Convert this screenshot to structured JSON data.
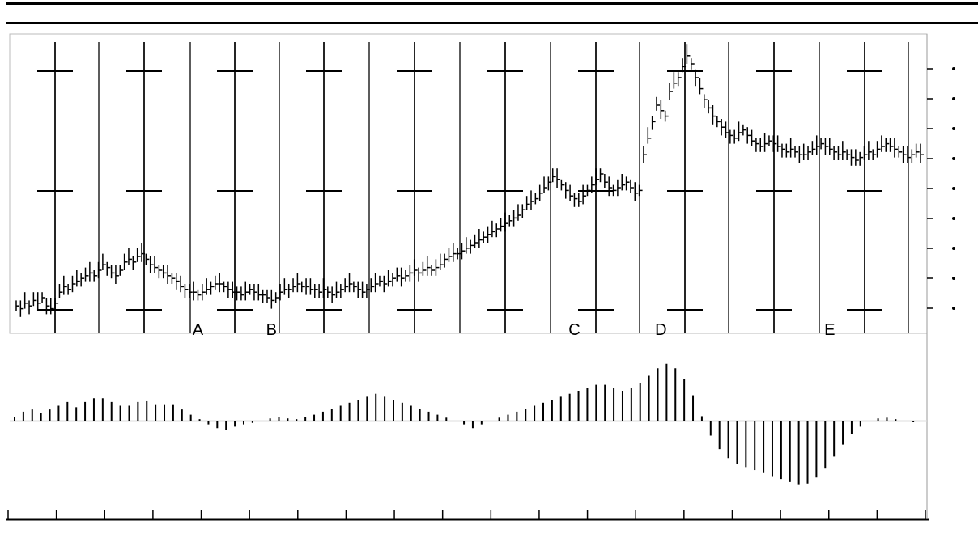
{
  "chart": {
    "title": "",
    "indicator_label": ""
  },
  "chart_data": {
    "type": "bar",
    "title": "",
    "price_panel": {
      "type": "ohlc",
      "ylim": [
        0,
        100
      ],
      "wave_labels": [
        "A",
        "B",
        "C",
        "D",
        "E"
      ],
      "wave_label_bars": [
        42,
        59,
        129,
        149,
        188
      ],
      "close": [
        7,
        6,
        8,
        7,
        9,
        8,
        10,
        7,
        6,
        8,
        12,
        14,
        13,
        15,
        16,
        17,
        18,
        19,
        18,
        20,
        22,
        21,
        19,
        18,
        20,
        23,
        24,
        23,
        25,
        26,
        24,
        22,
        21,
        20,
        19,
        18,
        17,
        16,
        14,
        13,
        12,
        12,
        11,
        12,
        13,
        14,
        15,
        15,
        14,
        13,
        12,
        12,
        11,
        12,
        13,
        12,
        11,
        11,
        10,
        9,
        10,
        12,
        13,
        13,
        14,
        15,
        14,
        14,
        13,
        13,
        12,
        13,
        12,
        11,
        12,
        13,
        14,
        15,
        14,
        13,
        12,
        13,
        14,
        15,
        16,
        15,
        16,
        17,
        18,
        17,
        18,
        19,
        20,
        19,
        20,
        21,
        20,
        21,
        22,
        24,
        25,
        26,
        26,
        27,
        28,
        29,
        30,
        31,
        32,
        33,
        34,
        35,
        36,
        37,
        38,
        39,
        40,
        42,
        44,
        45,
        46,
        48,
        50,
        52,
        54,
        53,
        51,
        49,
        47,
        46,
        45,
        47,
        49,
        51,
        53,
        55,
        52,
        50,
        49,
        50,
        51,
        52,
        50,
        48,
        49,
        62,
        68,
        74,
        80,
        78,
        76,
        85,
        88,
        90,
        94,
        98,
        95,
        90,
        86,
        82,
        79,
        76,
        74,
        72,
        70,
        69,
        68,
        70,
        71,
        69,
        67,
        66,
        65,
        66,
        67,
        66,
        65,
        64,
        63,
        64,
        63,
        62,
        62,
        63,
        64,
        65,
        66,
        65,
        64,
        63,
        62,
        63,
        62,
        61,
        60,
        61,
        62,
        63,
        62,
        64,
        65,
        66,
        65,
        64,
        63,
        62,
        61,
        62,
        63,
        62
      ]
    },
    "indicator_panel": {
      "type": "bar",
      "ylim": [
        -1,
        1
      ],
      "values": [
        0.05,
        0.1,
        0.12,
        0.14,
        0.15,
        0.12,
        0.1,
        0.12,
        0.15,
        0.18,
        0.2,
        0.22,
        0.25,
        0.2,
        0.18,
        0.22,
        0.25,
        0.28,
        0.3,
        0.32,
        0.3,
        0.28,
        0.25,
        0.22,
        0.2,
        0.18,
        0.2,
        0.22,
        0.25,
        0.28,
        0.26,
        0.24,
        0.22,
        0.2,
        0.22,
        0.24,
        0.22,
        0.2,
        0.15,
        0.1,
        0.08,
        0.05,
        0.02,
        0.0,
        -0.05,
        -0.08,
        -0.1,
        -0.12,
        -0.12,
        -0.1,
        -0.08,
        -0.06,
        -0.05,
        -0.04,
        -0.03,
        -0.02,
        0.0,
        0.02,
        0.03,
        0.04,
        0.05,
        0.04,
        0.03,
        0.02,
        0.02,
        0.03,
        0.05,
        0.06,
        0.08,
        0.1,
        0.12,
        0.14,
        0.16,
        0.18,
        0.2,
        0.22,
        0.24,
        0.26,
        0.28,
        0.3,
        0.32,
        0.34,
        0.36,
        0.34,
        0.32,
        0.3,
        0.28,
        0.26,
        0.24,
        0.22,
        0.2,
        0.18,
        0.16,
        0.14,
        0.12,
        0.1,
        0.08,
        0.06,
        0.04,
        0.02,
        0.0,
        -0.02,
        -0.05,
        -0.08,
        -0.1,
        -0.08,
        -0.05,
        -0.02,
        0.0,
        0.02,
        0.04,
        0.06,
        0.08,
        0.1,
        0.12,
        0.14,
        0.16,
        0.18,
        0.2,
        0.22,
        0.24,
        0.26,
        0.28,
        0.3,
        0.32,
        0.34,
        0.36,
        0.38,
        0.4,
        0.42,
        0.44,
        0.46,
        0.48,
        0.5,
        0.48,
        0.46,
        0.44,
        0.42,
        0.4,
        0.42,
        0.44,
        0.46,
        0.5,
        0.54,
        0.6,
        0.66,
        0.7,
        0.74,
        0.76,
        0.74,
        0.7,
        0.64,
        0.56,
        0.46,
        0.34,
        0.2,
        0.06,
        -0.08,
        -0.2,
        -0.3,
        -0.38,
        -0.44,
        -0.5,
        -0.55,
        -0.58,
        -0.6,
        -0.62,
        -0.64,
        -0.66,
        -0.68,
        -0.7,
        -0.72,
        -0.74,
        -0.76,
        -0.78,
        -0.8,
        -0.82,
        -0.84,
        -0.85,
        -0.86,
        -0.84,
        -0.8,
        -0.76,
        -0.7,
        -0.64,
        -0.56,
        -0.48,
        -0.4,
        -0.32,
        -0.24,
        -0.18,
        -0.12,
        -0.08,
        -0.04,
        0.0,
        0.02,
        0.03,
        0.04,
        0.04,
        0.03,
        0.02,
        0.01,
        0.0,
        -0.01,
        -0.02,
        -0.01,
        0.0
      ]
    },
    "x_tick_count": 20,
    "y_tick_count": 9,
    "grid": true,
    "xlabel": "",
    "ylabel": ""
  }
}
